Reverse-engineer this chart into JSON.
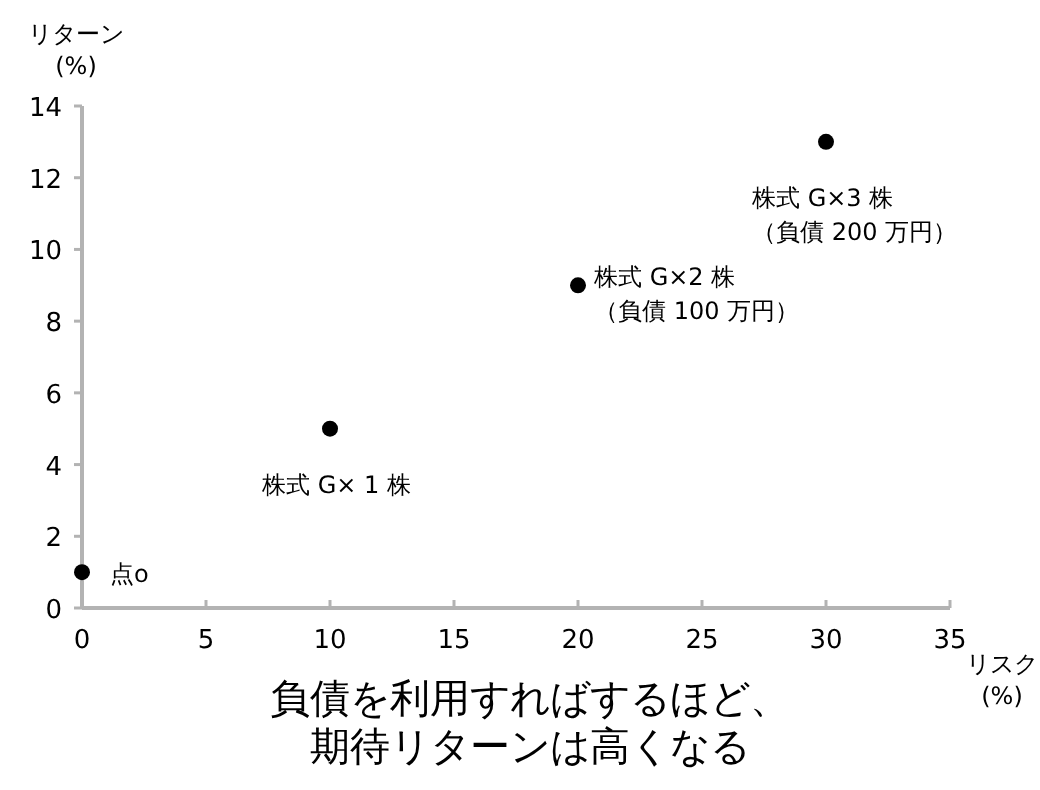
{
  "chart_data": {
    "type": "scatter",
    "title": "負債を利用すればするほど、期待リターンは高くなる",
    "xlabel": "リスク\n(%)",
    "ylabel": "リターン\n(%)",
    "x": [
      0,
      10,
      20,
      30
    ],
    "series": [
      {
        "color": "#000000",
        "values": [
          1,
          5,
          9,
          13
        ]
      }
    ],
    "marker": "circle",
    "xlim": [
      0,
      35
    ],
    "xticks": [
      0,
      5,
      10,
      15,
      20,
      25,
      30,
      35
    ],
    "ylim": [
      0,
      14
    ],
    "yticks": [
      0,
      2,
      4,
      6,
      8,
      10,
      12,
      14
    ],
    "grid": false,
    "annotations": [
      {
        "text": "点o",
        "x": 0,
        "y": 1
      },
      {
        "text": "株式 G× 1 株",
        "x": 10,
        "y": 5
      },
      {
        "text": "株式 G×2 株",
        "x": 20,
        "y": 9
      },
      {
        "text": "（負債 100 万円）",
        "x": 20,
        "y": 9
      },
      {
        "text": "株式 G×3 株",
        "x": 30,
        "y": 13
      },
      "（負債 200 万円）"
    ]
  }
}
